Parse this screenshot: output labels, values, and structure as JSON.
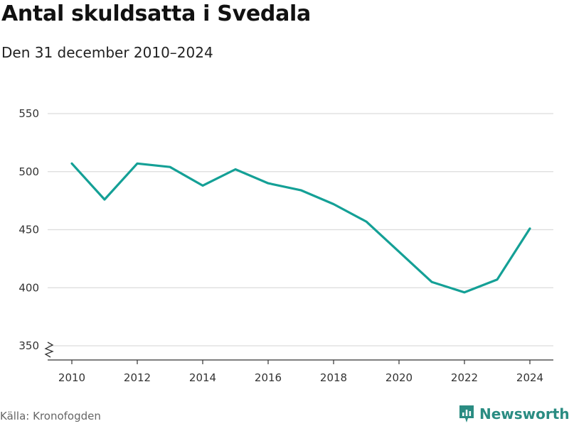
{
  "title": "Antal skuldsatta i Svedala",
  "subtitle": "Den 31 december 2010–2024",
  "source": "Källa: Kronofogden",
  "brand": {
    "name": "Newsworthy",
    "icon": "bar-chart-icon",
    "color": "#2a8c82"
  },
  "chart_data": {
    "type": "line",
    "x": [
      2010,
      2011,
      2012,
      2013,
      2014,
      2015,
      2016,
      2017,
      2018,
      2019,
      2020,
      2021,
      2022,
      2023,
      2024
    ],
    "series": [
      {
        "values": [
          507,
          476,
          507,
          504,
          488,
          502,
          490,
          484,
          472,
          457,
          431,
          405,
          396,
          407,
          451
        ]
      }
    ],
    "color": "#14a096",
    "xlim": [
      2010,
      2024
    ],
    "ylim": [
      350,
      550
    ],
    "xticks": [
      2010,
      2012,
      2014,
      2016,
      2018,
      2020,
      2022,
      2024
    ],
    "yticks": [
      350,
      400,
      450,
      500,
      550
    ],
    "axis_break": true,
    "grid": true
  }
}
